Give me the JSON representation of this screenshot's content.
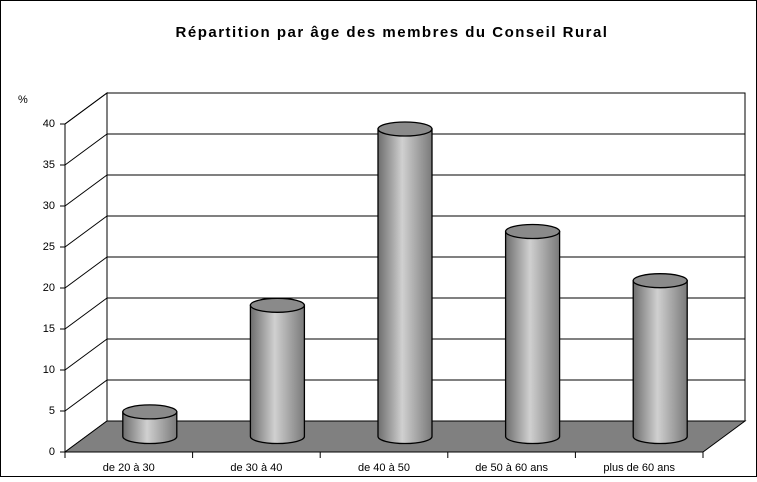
{
  "chart_data": {
    "type": "bar3d",
    "title": "Répartition par âge des membres du Conseil Rural",
    "y_label": "%",
    "categories": [
      "de 20 à 30",
      "de 30 à 40",
      "de 40 à 50",
      "de 50 à 60 ans",
      "plus de 60 ans"
    ],
    "values": [
      3,
      16,
      37.5,
      25,
      19
    ],
    "color": "#9a9a9a",
    "ylim": [
      0,
      40
    ],
    "yticks": [
      0,
      5,
      10,
      15,
      20,
      25,
      30,
      35,
      40
    ],
    "grid": true
  }
}
